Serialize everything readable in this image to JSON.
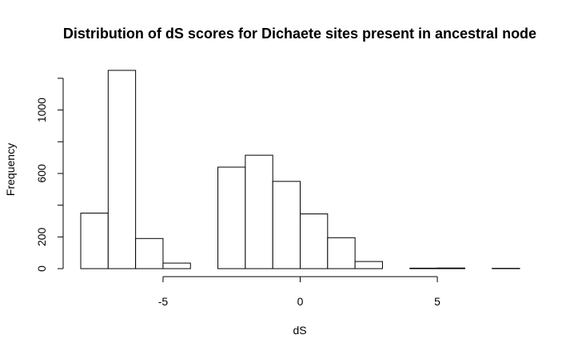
{
  "chart_data": {
    "type": "bar",
    "title": "Distribution of dS scores for Dichaete sites present in ancestral node",
    "xlabel": "dS",
    "ylabel": "Frequency",
    "bins": [
      {
        "x0": -8,
        "x1": -7,
        "count": 350
      },
      {
        "x0": -7,
        "x1": -6,
        "count": 1250
      },
      {
        "x0": -6,
        "x1": -5,
        "count": 190
      },
      {
        "x0": -5,
        "x1": -4,
        "count": 35
      },
      {
        "x0": -4,
        "x1": -3,
        "count": 0
      },
      {
        "x0": -3,
        "x1": -2,
        "count": 640
      },
      {
        "x0": -2,
        "x1": -1,
        "count": 715
      },
      {
        "x0": -1,
        "x1": 0,
        "count": 550
      },
      {
        "x0": 0,
        "x1": 1,
        "count": 345
      },
      {
        "x0": 1,
        "x1": 2,
        "count": 195
      },
      {
        "x0": 2,
        "x1": 3,
        "count": 45
      },
      {
        "x0": 3,
        "x1": 4,
        "count": 0
      },
      {
        "x0": 4,
        "x1": 5,
        "count": 3
      },
      {
        "x0": 5,
        "x1": 6,
        "count": 4
      },
      {
        "x0": 6,
        "x1": 7,
        "count": 0
      },
      {
        "x0": 7,
        "x1": 8,
        "count": 2
      }
    ],
    "xlim": [
      -8,
      8
    ],
    "ylim": [
      0,
      1250
    ],
    "xticks": [
      -5,
      0,
      5
    ],
    "xtick_labels": [
      "-5",
      "0",
      "5"
    ],
    "yticks": [
      0,
      200,
      400,
      600,
      800,
      1000,
      1200
    ],
    "ytick_labels": [
      "0",
      "200",
      "",
      "600",
      "",
      "1000",
      ""
    ],
    "grid": false,
    "legend": "none"
  }
}
